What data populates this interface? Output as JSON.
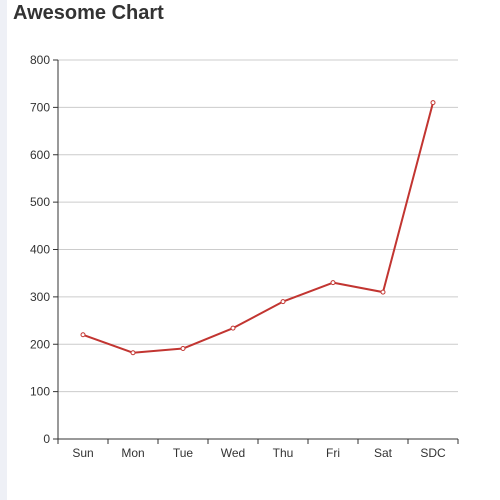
{
  "title": "Awesome Chart",
  "colors": {
    "line": "#c23531",
    "grid": "#cccccc",
    "axis": "#333333",
    "text": "#333333"
  },
  "chart_data": {
    "type": "line",
    "title": "Awesome Chart",
    "categories": [
      "Sun",
      "Mon",
      "Tue",
      "Wed",
      "Thu",
      "Fri",
      "Sat",
      "SDC"
    ],
    "series": [
      {
        "values": [
          220,
          182,
          191,
          234,
          290,
          330,
          310,
          710
        ]
      }
    ],
    "ylim": [
      0,
      800
    ],
    "y_ticks": [
      0,
      100,
      200,
      300,
      400,
      500,
      600,
      700,
      800
    ],
    "grid": true,
    "legend": "none",
    "xlabel": "",
    "ylabel": ""
  }
}
